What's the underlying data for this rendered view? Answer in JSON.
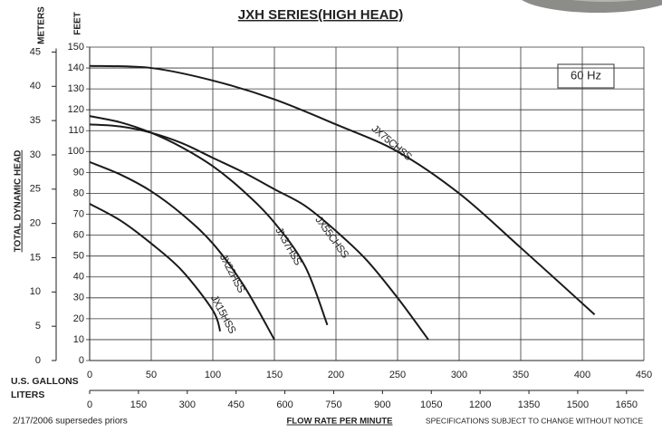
{
  "chart_data": {
    "type": "line",
    "title": "JXH SERIES(HIGH HEAD)",
    "y_label": "FEET",
    "y2_label": "METERS",
    "side_label": "TOTAL DYNAMIC HEAD",
    "x_label": "U.S. GALLONS",
    "x2_label": "LITERS",
    "x_title": "FLOW RATE PER MINUTE",
    "frequency_label": "60 Hz",
    "footnote_left": "2/17/2006 supersedes priors",
    "footnote_right": "SPECIFICATIONS SUBJECT TO CHANGE WITHOUT NOTICE",
    "xlim": [
      0,
      450
    ],
    "xticks": [
      0,
      50,
      100,
      150,
      200,
      250,
      300,
      350,
      400,
      450
    ],
    "x2lim": [
      0,
      1703.4
    ],
    "x2ticks": [
      0,
      150,
      300,
      450,
      600,
      750,
      900,
      1050,
      1200,
      1350,
      1500,
      1650
    ],
    "ylim": [
      0,
      150
    ],
    "yticks": [
      0,
      10,
      20,
      30,
      40,
      50,
      60,
      70,
      80,
      90,
      100,
      110,
      120,
      130,
      140,
      150
    ],
    "y2lim": [
      0,
      45.72
    ],
    "y2ticks": [
      0,
      5,
      10,
      15,
      20,
      25,
      30,
      35,
      40,
      45
    ],
    "grid": true,
    "series": [
      {
        "name": "JX75CHSS",
        "color": "#1a1a1a",
        "x": [
          0,
          50,
          100,
          150,
          200,
          250,
          300,
          350,
          410
        ],
        "values": [
          141,
          140,
          134,
          125,
          113,
          100,
          80,
          54,
          22
        ]
      },
      {
        "name": "JX55CHSS",
        "color": "#1a1a1a",
        "x": [
          0,
          25,
          50,
          75,
          100,
          125,
          150,
          175,
          200,
          225,
          250,
          275
        ],
        "values": [
          113,
          112,
          109,
          104,
          97,
          90,
          82,
          74,
          62,
          48,
          30,
          10
        ]
      },
      {
        "name": "JX37HSS",
        "color": "#1a1a1a",
        "x": [
          0,
          25,
          50,
          75,
          100,
          125,
          150,
          175,
          193
        ],
        "values": [
          117,
          114,
          109,
          102,
          93,
          81,
          66,
          45,
          17
        ]
      },
      {
        "name": "JX22HSS",
        "color": "#1a1a1a",
        "x": [
          0,
          25,
          50,
          75,
          100,
          125,
          150
        ],
        "values": [
          95,
          89,
          81,
          70,
          56,
          36,
          10
        ]
      },
      {
        "name": "JX15HSS",
        "color": "#1a1a1a",
        "x": [
          0,
          25,
          50,
          75,
          100,
          106
        ],
        "values": [
          75,
          67,
          56,
          43,
          24,
          14
        ]
      }
    ]
  }
}
